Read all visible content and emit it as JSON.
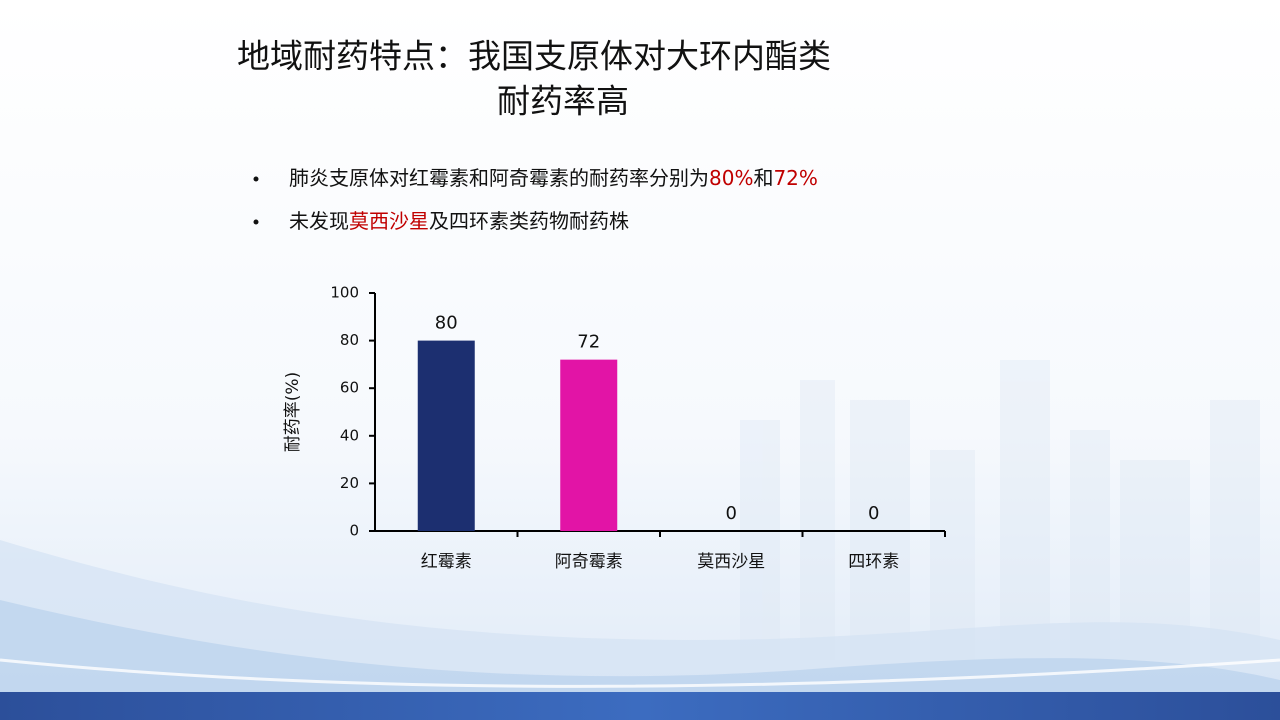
{
  "slide": {
    "title_lines": [
      "地域耐药特点：我国支原体对大环内酯类",
      "耐药率高"
    ],
    "bullets": [
      [
        {
          "text": "肺炎支原体对红霉素和阿奇霉素的耐药率分别为",
          "color": "#111111"
        },
        {
          "text": "80%",
          "color": "#c00000"
        },
        {
          "text": "和",
          "color": "#111111"
        },
        {
          "text": "72%",
          "color": "#c00000"
        }
      ],
      [
        {
          "text": "未发现",
          "color": "#111111"
        },
        {
          "text": "莫西沙星",
          "color": "#c00000"
        },
        {
          "text": "及四环素类药物耐药株",
          "color": "#111111"
        }
      ]
    ]
  },
  "chart_data": {
    "type": "bar",
    "y_label": "耐药率(%)",
    "categories": [
      "红霉素",
      "阿奇霉素",
      "莫西沙星",
      "四环素"
    ],
    "values": [
      80,
      72,
      0,
      0
    ],
    "colors": [
      "#1c2f70",
      "#e214a6",
      "#1c2f70",
      "#e214a6"
    ],
    "ylim": [
      0,
      100
    ],
    "yticks": [
      0,
      20,
      40,
      60,
      80,
      100
    ],
    "grid": false
  }
}
